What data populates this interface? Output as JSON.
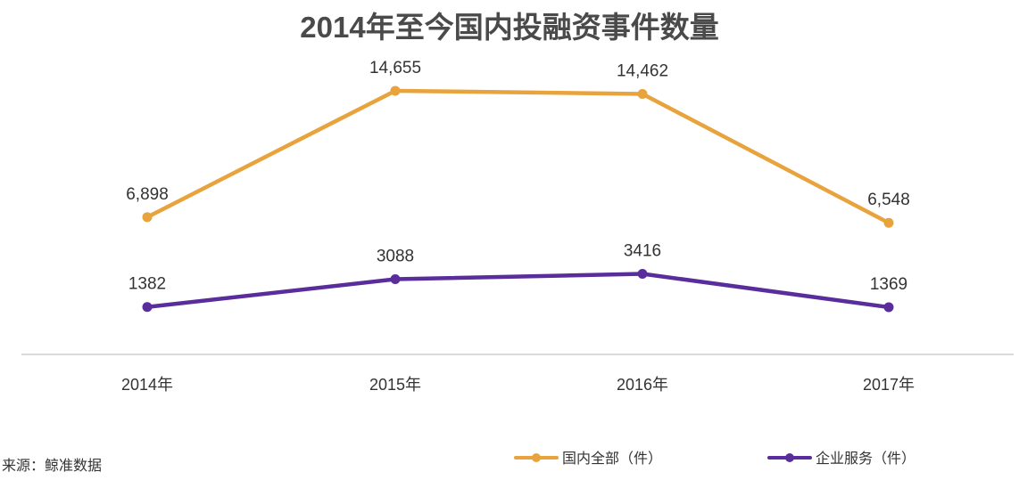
{
  "chart_data": {
    "type": "line",
    "title": "2014年至今国内投融资事件数量",
    "categories": [
      "2014年",
      "2015年",
      "2016年",
      "2017年"
    ],
    "series": [
      {
        "name": "国内全部（件）",
        "color": "#e8a33d",
        "values": [
          6898,
          14655,
          14462,
          6548
        ],
        "labels": [
          "6,898",
          "14,655",
          "14,462",
          "6,548"
        ]
      },
      {
        "name": "企业服务（件）",
        "color": "#5a2d9c",
        "values": [
          1382,
          3088,
          3416,
          1369
        ],
        "labels": [
          "1382",
          "3088",
          "3416",
          "1369"
        ]
      }
    ],
    "ylim": [
      0,
      16000
    ],
    "grid": false,
    "legend": "bottom-right"
  },
  "source": "来源：鲸准数据"
}
